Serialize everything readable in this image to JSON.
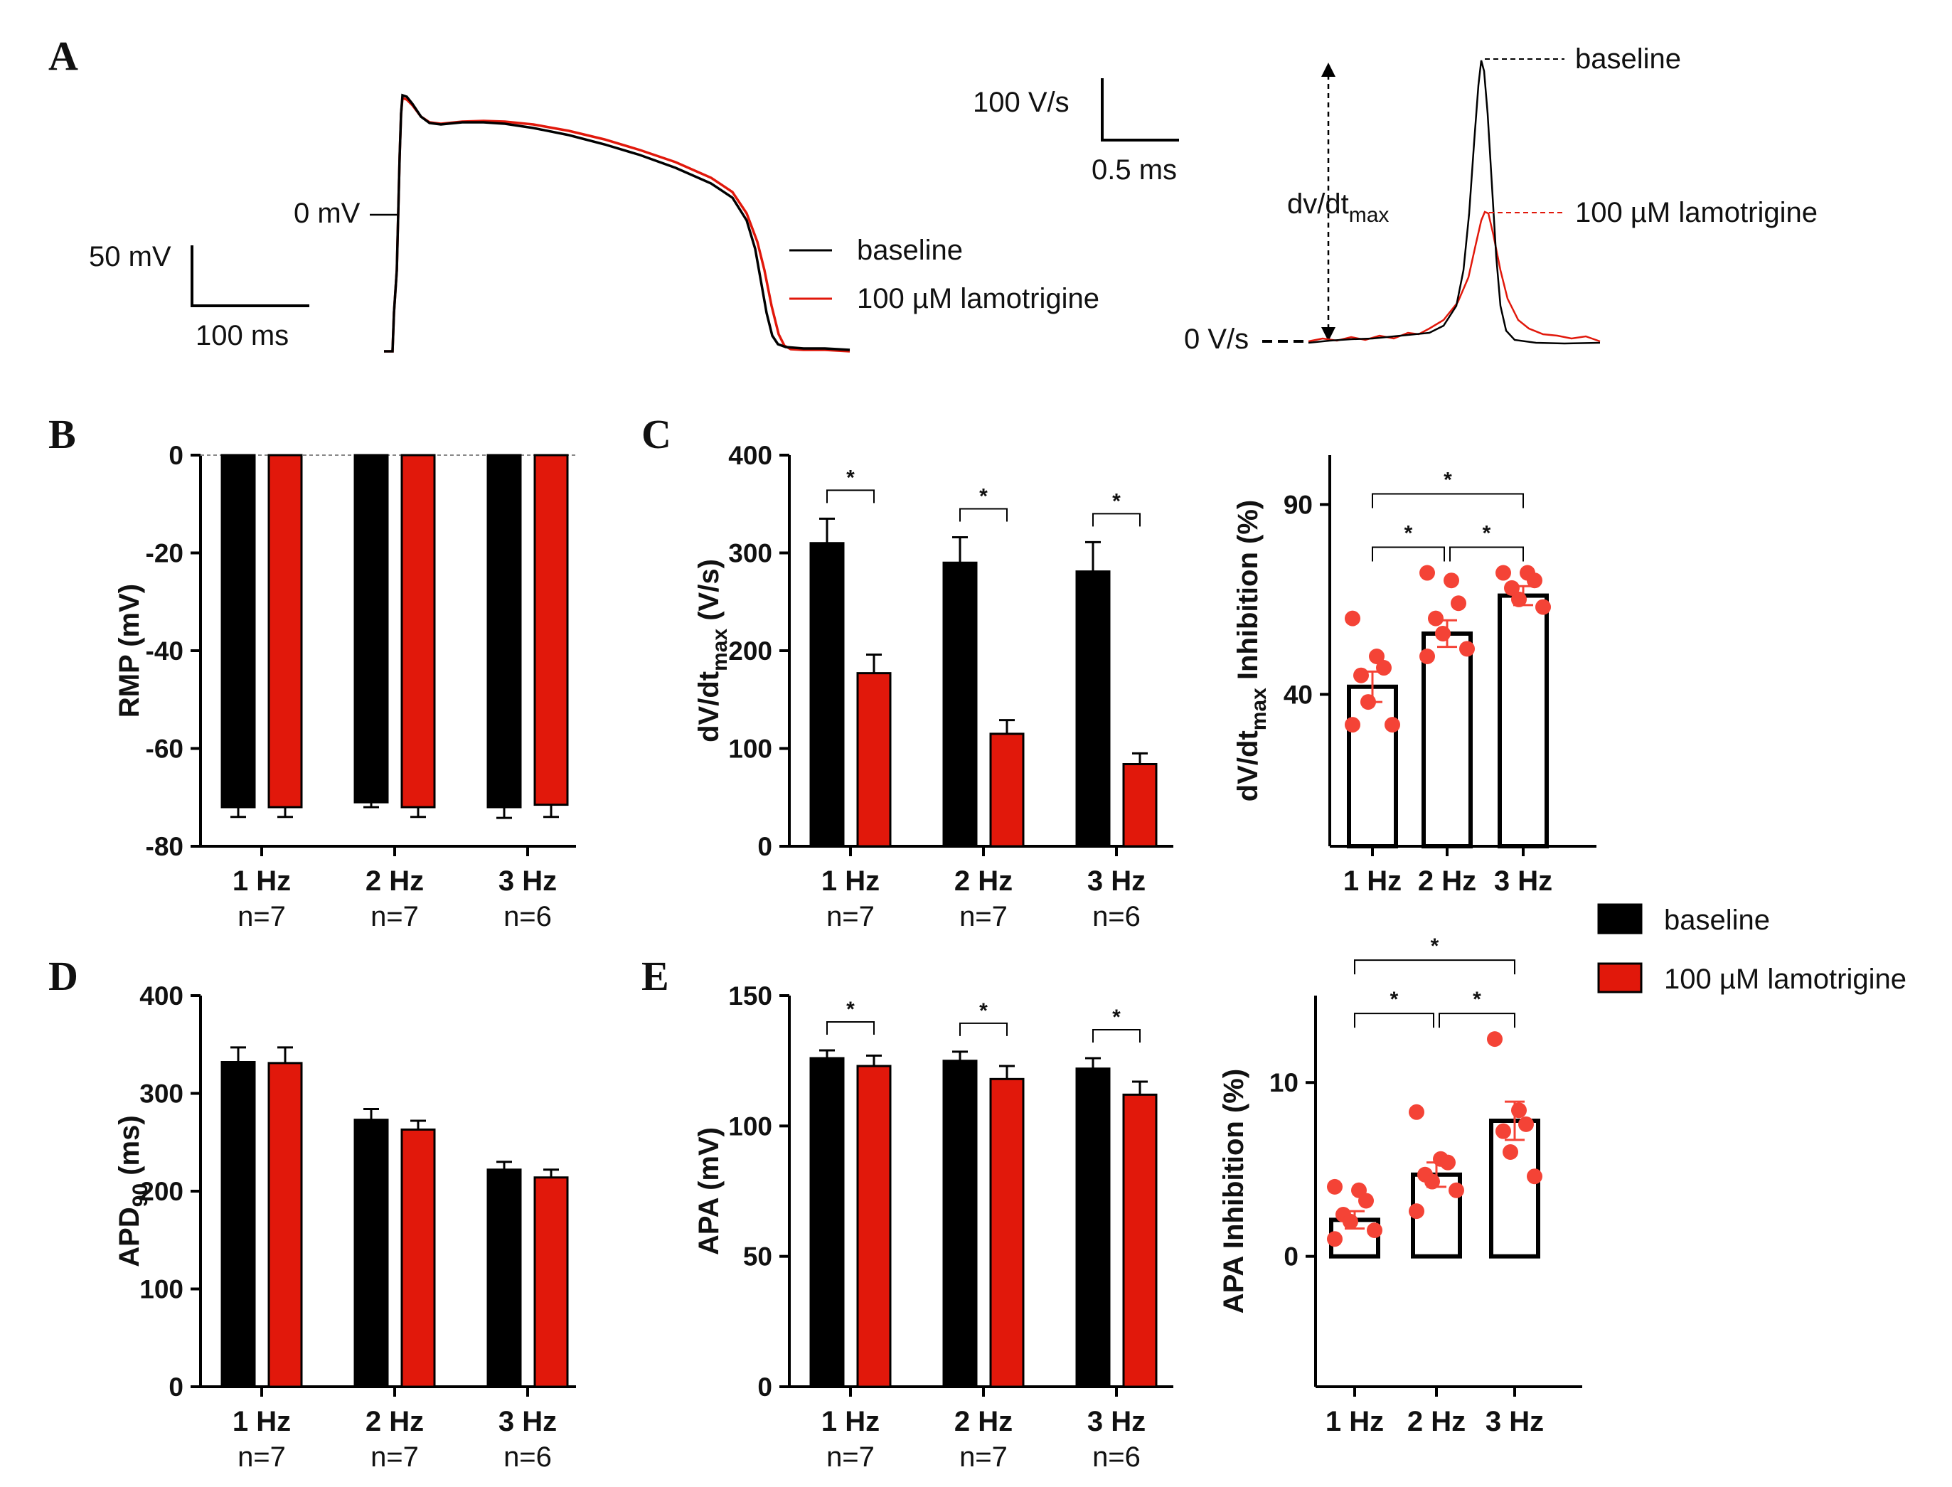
{
  "figure": {
    "panel_letters": [
      "A",
      "B",
      "C",
      "D",
      "E"
    ]
  },
  "colors": {
    "baseline": "#000000",
    "lamotrigine": "#e1180b",
    "points": "#f44336",
    "axis": "#000000",
    "zero_line": "#888888"
  },
  "legend": {
    "baseline": "baseline",
    "lamotrigine": "100 µM lamotrigine"
  },
  "categories": {
    "labels": [
      "1 Hz",
      "2 Hz",
      "3 Hz"
    ],
    "n": [
      "n=7",
      "n=7",
      "n=6"
    ]
  },
  "significance_mark": "*",
  "panel_a": {
    "scale_bar_left": {
      "y_label": "50 mV",
      "x_label": "100 ms"
    },
    "zero_label": "0 mV",
    "scale_bar_right": {
      "y_label": "100 V/s",
      "x_label": "0.5 ms"
    },
    "zero_rate_label": "0 V/s",
    "dvdt_label": {
      "main": "dv/dt",
      "sub": "max"
    },
    "peak_labels": [
      "baseline",
      "100 µM lamotrigine"
    ]
  },
  "chart_data": [
    {
      "id": "B",
      "type": "bar",
      "categories": [
        "1 Hz",
        "2 Hz",
        "3 Hz"
      ],
      "series": [
        {
          "name": "baseline",
          "values": [
            -72,
            -71,
            -72
          ],
          "errors": [
            2.0,
            1.0,
            2.2
          ]
        },
        {
          "name": "100 µM lamotrigine",
          "values": [
            -72,
            -72,
            -71.5
          ],
          "errors": [
            2.0,
            2.0,
            2.5
          ]
        }
      ],
      "ylabel": "RMP (mV)",
      "ylim": [
        -80,
        0
      ],
      "yticks": [
        0,
        -20,
        -40,
        -60,
        -80
      ],
      "ytick_labels": [
        "0",
        "-20",
        "-40",
        "-60",
        "-80"
      ]
    },
    {
      "id": "C_left",
      "type": "bar",
      "categories": [
        "1 Hz",
        "2 Hz",
        "3 Hz"
      ],
      "series": [
        {
          "name": "baseline",
          "values": [
            310,
            290,
            281
          ],
          "errors": [
            25,
            26,
            30
          ]
        },
        {
          "name": "100 µM lamotrigine",
          "values": [
            177,
            115,
            84
          ],
          "errors": [
            19,
            14,
            11
          ]
        }
      ],
      "ylabel": {
        "main": "dV/dt",
        "sub": "max",
        "rest": " (V/s)"
      },
      "ylim": [
        0,
        400
      ],
      "yticks": [
        0,
        100,
        200,
        300,
        400
      ],
      "ytick_labels": [
        "0",
        "100",
        "200",
        "300",
        "400"
      ],
      "significance": [
        {
          "category": "1 Hz",
          "label": "*"
        },
        {
          "category": "2 Hz",
          "label": "*"
        },
        {
          "category": "3 Hz",
          "label": "*"
        }
      ]
    },
    {
      "id": "C_right",
      "type": "bar_scatter",
      "categories": [
        "1 Hz",
        "2 Hz",
        "3 Hz"
      ],
      "values": [
        42,
        56,
        66
      ],
      "errors": [
        4,
        3.5,
        2.5
      ],
      "points": [
        [
          60,
          50,
          47,
          45,
          38,
          32,
          32
        ],
        [
          72,
          70,
          64,
          60,
          56,
          52,
          50
        ],
        [
          72,
          72,
          70,
          68,
          65,
          63
        ]
      ],
      "ylabel": {
        "main": "dV/dt",
        "sub": "max",
        "rest": " Inhibition (%)"
      },
      "ylim": [
        0,
        103
      ],
      "yticks": [
        40,
        90
      ],
      "ytick_labels": [
        "40",
        "90"
      ],
      "significance": [
        {
          "pair": [
            "1 Hz",
            "3 Hz"
          ],
          "label": "*"
        },
        {
          "pair": [
            "1 Hz",
            "2 Hz"
          ],
          "label": "*"
        },
        {
          "pair": [
            "2 Hz",
            "3 Hz"
          ],
          "label": "*"
        }
      ]
    },
    {
      "id": "D",
      "type": "bar",
      "categories": [
        "1 Hz",
        "2 Hz",
        "3 Hz"
      ],
      "series": [
        {
          "name": "baseline",
          "values": [
            332,
            273,
            222
          ],
          "errors": [
            15,
            11,
            8
          ]
        },
        {
          "name": "100 µM lamotrigine",
          "values": [
            331,
            263,
            214
          ],
          "errors": [
            16,
            9,
            8
          ]
        }
      ],
      "ylabel": {
        "main": "APD",
        "sub": "90",
        "rest": " (ms)"
      },
      "ylim": [
        0,
        400
      ],
      "yticks": [
        0,
        100,
        200,
        300,
        400
      ],
      "ytick_labels": [
        "0",
        "100",
        "200",
        "300",
        "400"
      ]
    },
    {
      "id": "E_left",
      "type": "bar",
      "categories": [
        "1 Hz",
        "2 Hz",
        "3 Hz"
      ],
      "series": [
        {
          "name": "baseline",
          "values": [
            126,
            125,
            122
          ],
          "errors": [
            3,
            3.5,
            4
          ]
        },
        {
          "name": "100 µM lamotrigine",
          "values": [
            123,
            118,
            112
          ],
          "errors": [
            4,
            5,
            5
          ]
        }
      ],
      "ylabel": "APA (mV)",
      "ylim": [
        0,
        150
      ],
      "yticks": [
        0,
        50,
        100,
        150
      ],
      "ytick_labels": [
        "0",
        "50",
        "100",
        "150"
      ],
      "significance": [
        {
          "category": "1 Hz",
          "label": "*"
        },
        {
          "category": "2 Hz",
          "label": "*"
        },
        {
          "category": "3 Hz",
          "label": "*"
        }
      ]
    },
    {
      "id": "E_right",
      "type": "bar_scatter",
      "categories": [
        "1 Hz",
        "2 Hz",
        "3 Hz"
      ],
      "values": [
        2.1,
        4.7,
        7.8
      ],
      "errors": [
        0.5,
        0.7,
        1.1
      ],
      "points": [
        [
          4.0,
          3.8,
          3.2,
          2.4,
          2.0,
          1.5,
          1.0
        ],
        [
          8.3,
          5.6,
          5.4,
          4.7,
          4.3,
          3.8,
          2.6
        ],
        [
          12.5,
          8.4,
          7.6,
          7.2,
          6.0,
          4.6
        ]
      ],
      "ylabel": "APA Inhibition (%)",
      "ylim": [
        -7.5,
        15
      ],
      "yticks": [
        0,
        10
      ],
      "ytick_labels": [
        "0",
        "10"
      ],
      "significance": [
        {
          "pair": [
            "1 Hz",
            "3 Hz"
          ],
          "label": "*"
        },
        {
          "pair": [
            "1 Hz",
            "2 Hz"
          ],
          "label": "*"
        },
        {
          "pair": [
            "2 Hz",
            "3 Hz"
          ],
          "label": "*"
        }
      ]
    }
  ]
}
